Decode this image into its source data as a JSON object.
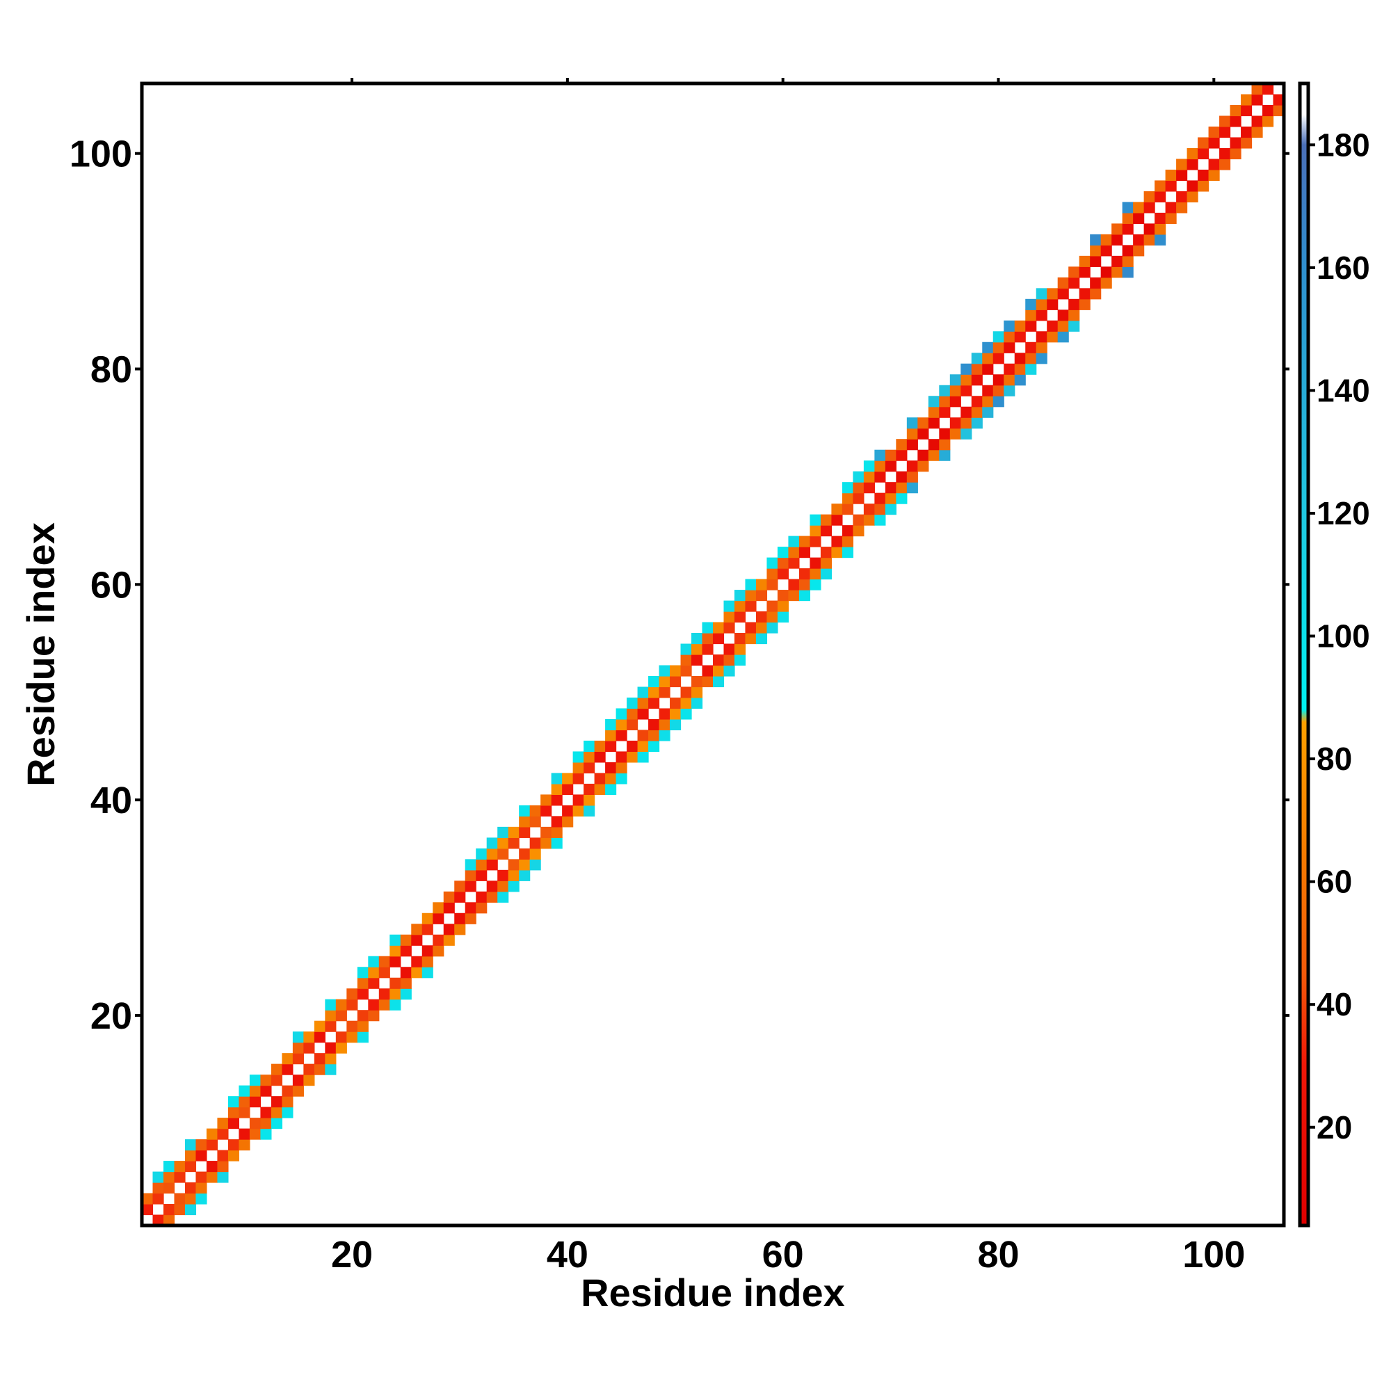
{
  "chart_data": {
    "type": "heatmap",
    "title": "",
    "xlabel": "Residue index",
    "ylabel": "Residue index",
    "xlim": [
      0.5,
      106.5
    ],
    "ylim": [
      0.5,
      106.5
    ],
    "x_ticks": [
      20,
      40,
      60,
      80,
      100
    ],
    "y_ticks": [
      20,
      40,
      60,
      80,
      100
    ],
    "grid": false,
    "legend": "colorbar on right",
    "colorbar": {
      "range": [
        4,
        190
      ],
      "ticks": [
        20,
        40,
        60,
        80,
        100,
        120,
        140,
        160,
        180
      ],
      "stops": [
        {
          "value": 4,
          "color": "#e00000"
        },
        {
          "value": 30,
          "color": "#f01808"
        },
        {
          "value": 45,
          "color": "#f25a0a"
        },
        {
          "value": 65,
          "color": "#f47c00"
        },
        {
          "value": 86,
          "color": "#ffa000"
        },
        {
          "value": 88,
          "color": "#00f0f0"
        },
        {
          "value": 120,
          "color": "#20c8e0"
        },
        {
          "value": 160,
          "color": "#2f8fce"
        },
        {
          "value": 180,
          "color": "#4a6fb8"
        },
        {
          "value": 185,
          "color": "#ffffff"
        },
        {
          "value": 190,
          "color": "#ffffff"
        }
      ]
    },
    "value_description": "Symmetric residue-pair map; pairs with |i-j| = 1, 2 and (in the helical region) 3 are coloured",
    "regions": [
      {
        "start": 1,
        "end": 68,
        "values_d1": [
          20,
          45
        ],
        "values_d2": [
          45,
          80
        ],
        "values_d3": [
          95,
          110
        ]
      },
      {
        "start": 69,
        "end": 92,
        "values_d1": [
          10,
          30
        ],
        "values_d2": [
          45,
          60
        ],
        "values_d3": [
          100,
          170
        ]
      },
      {
        "start": 93,
        "end": 106,
        "values_d1": [
          10,
          30
        ],
        "values_d2": [
          45,
          65
        ],
        "values_d3": []
      }
    ]
  }
}
